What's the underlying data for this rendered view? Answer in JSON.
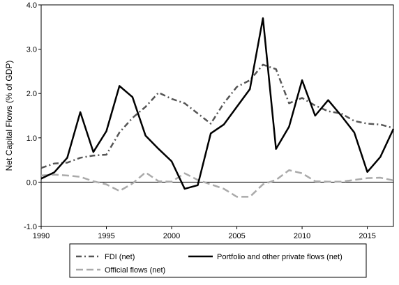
{
  "chart_data": {
    "type": "line",
    "ylabel": "Net Capital Flows (% of GDP)",
    "xlabel": "",
    "xlim": [
      1990,
      2017
    ],
    "ylim": [
      -1.0,
      4.0
    ],
    "x_ticks": [
      1990,
      1995,
      2000,
      2005,
      2010,
      2015
    ],
    "y_ticks": [
      -1.0,
      0.0,
      1.0,
      2.0,
      3.0,
      4.0
    ],
    "y_tick_labels": [
      "-1.0",
      "0.0",
      "1.0",
      "2.0",
      "3.0",
      "4.0"
    ],
    "grid": false,
    "zero_line": true,
    "legend_position": "bottom",
    "x": [
      1990,
      1991,
      1992,
      1993,
      1994,
      1995,
      1996,
      1997,
      1998,
      1999,
      2000,
      2001,
      2002,
      2003,
      2004,
      2005,
      2006,
      2007,
      2008,
      2009,
      2010,
      2011,
      2012,
      2013,
      2014,
      2015,
      2016,
      2017
    ],
    "series": [
      {
        "name": "FDI (net)",
        "color": "#555555",
        "style": "dashdot",
        "values": [
          0.32,
          0.42,
          0.44,
          0.55,
          0.6,
          0.62,
          1.12,
          1.45,
          1.7,
          2.02,
          1.88,
          1.78,
          1.55,
          1.32,
          1.78,
          2.15,
          2.3,
          2.65,
          2.55,
          1.78,
          1.9,
          1.73,
          1.6,
          1.55,
          1.38,
          1.32,
          1.3,
          1.22
        ]
      },
      {
        "name": "Portfolio and other private flows (net)",
        "color": "#000000",
        "style": "solid",
        "values": [
          0.08,
          0.22,
          0.55,
          1.58,
          0.68,
          1.15,
          2.17,
          1.92,
          1.05,
          0.75,
          0.47,
          -0.15,
          -0.07,
          1.1,
          1.3,
          1.7,
          2.1,
          3.7,
          0.75,
          1.25,
          2.3,
          1.5,
          1.85,
          1.5,
          1.12,
          0.23,
          0.57,
          1.2
        ]
      },
      {
        "name": "Official flows (net)",
        "color": "#aaaaaa",
        "style": "dashed",
        "values": [
          0.15,
          0.17,
          0.15,
          0.12,
          0.02,
          -0.05,
          -0.2,
          -0.03,
          0.22,
          0.02,
          0.01,
          0.2,
          0.05,
          -0.05,
          -0.15,
          -0.33,
          -0.33,
          -0.05,
          0.05,
          0.27,
          0.2,
          0.02,
          0.01,
          0.01,
          0.05,
          0.09,
          0.1,
          0.04
        ]
      }
    ]
  }
}
